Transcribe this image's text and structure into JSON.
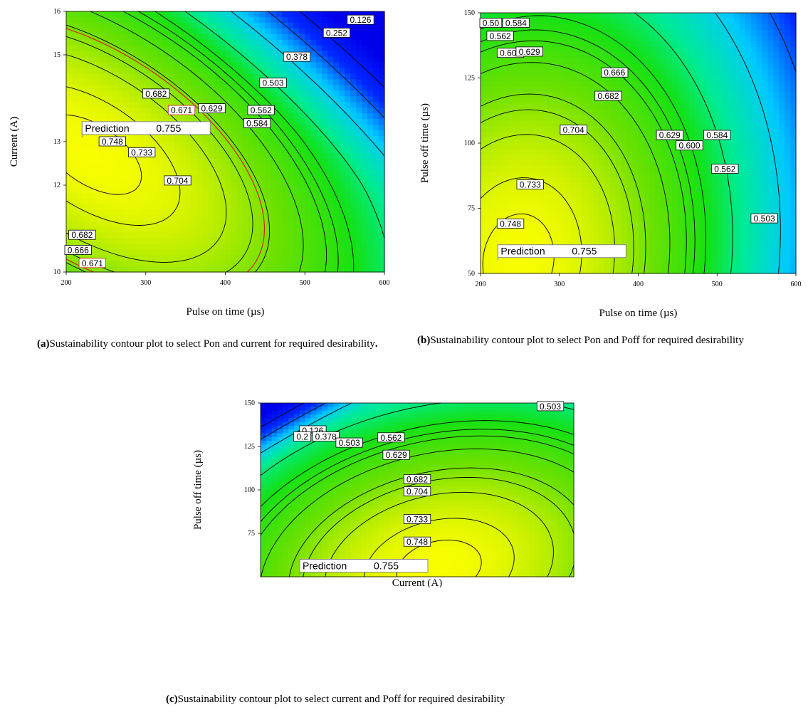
{
  "chart_data": [
    {
      "id": "a",
      "type": "contour",
      "xlabel": "Pulse on time (µs)",
      "ylabel": "Current (A)",
      "xlim": [
        200,
        600
      ],
      "ylim": [
        10,
        16
      ],
      "xticks": [
        "200",
        "300",
        "400",
        "500",
        "600"
      ],
      "yticks": [
        "10",
        "12",
        "13",
        "15",
        "16"
      ],
      "caption_label": "(a)",
      "caption_text": "Sustainability contour plot to select Pon and current for required desirability",
      "caption_suffix": ".",
      "prediction": {
        "label": "Prediction",
        "value": "0.755",
        "x": 220,
        "y": 13.1
      },
      "contour_labels": [
        {
          "text": "0.126",
          "x": 570,
          "y": 15.8
        },
        {
          "text": "0.252",
          "x": 540,
          "y": 15.5
        },
        {
          "text": "0.378",
          "x": 490,
          "y": 14.95
        },
        {
          "text": "0.503",
          "x": 460,
          "y": 14.35
        },
        {
          "text": "0.562",
          "x": 445,
          "y": 13.72
        },
        {
          "text": "0.584",
          "x": 440,
          "y": 13.42
        },
        {
          "text": "0.629",
          "x": 383,
          "y": 13.76
        },
        {
          "text": "0.671",
          "x": 345,
          "y": 13.72,
          "highlight": true
        },
        {
          "text": "0.682",
          "x": 313,
          "y": 14.1
        },
        {
          "text": "0.748",
          "x": 258,
          "y": 13.0
        },
        {
          "text": "0.733",
          "x": 295,
          "y": 12.75
        },
        {
          "text": "0.704",
          "x": 340,
          "y": 12.1
        },
        {
          "text": "0.682",
          "x": 220,
          "y": 10.85
        },
        {
          "text": "0.666",
          "x": 215,
          "y": 10.5
        },
        {
          "text": "0.671",
          "x": 233,
          "y": 10.2,
          "highlight": true
        }
      ]
    },
    {
      "id": "b",
      "type": "contour",
      "xlabel": "Pulse on time (µs)",
      "ylabel": "Pulse off time (µs)",
      "xlim": [
        200,
        600
      ],
      "ylim": [
        50,
        150
      ],
      "xticks": [
        "200",
        "300",
        "400",
        "500",
        "600"
      ],
      "yticks": [
        "50",
        "75",
        "100",
        "125",
        "150"
      ],
      "caption_label": "(b)",
      "caption_text": "Sustainability contour plot to select Pon and Poff for required desirability",
      "caption_suffix": "",
      "prediction": {
        "label": "Prediction",
        "value": "0.755",
        "x": 222,
        "y": 55
      },
      "contour_labels": [
        {
          "text": "0.50",
          "x": 213,
          "y": 146
        },
        {
          "text": "0.584",
          "x": 245,
          "y": 146
        },
        {
          "text": "0.562",
          "x": 225,
          "y": 141
        },
        {
          "text": "0.600",
          "x": 238,
          "y": 134.5
        },
        {
          "text": "0.629",
          "x": 262,
          "y": 135
        },
        {
          "text": "0.666",
          "x": 370,
          "y": 127
        },
        {
          "text": "0.682",
          "x": 362,
          "y": 118
        },
        {
          "text": "0.704",
          "x": 318,
          "y": 105
        },
        {
          "text": "0.629",
          "x": 440,
          "y": 103
        },
        {
          "text": "0.584",
          "x": 500,
          "y": 103
        },
        {
          "text": "0.600",
          "x": 465,
          "y": 99
        },
        {
          "text": "0.562",
          "x": 510,
          "y": 90
        },
        {
          "text": "0.733",
          "x": 263,
          "y": 84
        },
        {
          "text": "0.503",
          "x": 560,
          "y": 71
        },
        {
          "text": "0.748",
          "x": 238,
          "y": 69
        }
      ]
    },
    {
      "id": "c",
      "type": "contour",
      "xlabel": "Current (A)",
      "ylabel": "Pulse off time (µs)",
      "xlim": [
        10,
        16
      ],
      "ylim": [
        50,
        150
      ],
      "xticks": [],
      "yticks": [
        "75",
        "100",
        "125",
        "150"
      ],
      "caption_label": "(c)",
      "caption_text": "Sustainability contour plot to select current and Poff for required desirability",
      "caption_suffix": "",
      "prediction": {
        "label": "Prediction",
        "value": "0.755",
        "x": 10.75,
        "y": 51
      },
      "contour_labels": [
        {
          "text": "0.503",
          "x": 15.55,
          "y": 148
        },
        {
          "text": "0.126",
          "x": 11.0,
          "y": 134
        },
        {
          "text": "0.2",
          "x": 10.8,
          "y": 130.5
        },
        {
          "text": "0.378",
          "x": 11.25,
          "y": 130.5
        },
        {
          "text": "0.503",
          "x": 11.7,
          "y": 127
        },
        {
          "text": "0.562",
          "x": 12.5,
          "y": 130
        },
        {
          "text": "0.629",
          "x": 12.6,
          "y": 120
        },
        {
          "text": "0.682",
          "x": 13.0,
          "y": 106
        },
        {
          "text": "0.704",
          "x": 13.0,
          "y": 99
        },
        {
          "text": "0.733",
          "x": 13.0,
          "y": 83
        },
        {
          "text": "0.748",
          "x": 13.0,
          "y": 70
        }
      ]
    }
  ]
}
